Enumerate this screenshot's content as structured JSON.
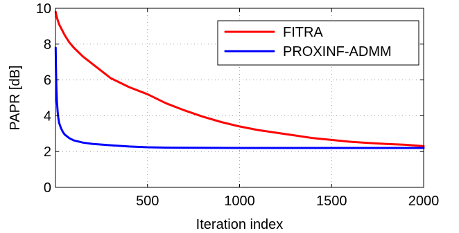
{
  "chart_data": {
    "type": "line",
    "title": "",
    "xlabel": "Iteration index",
    "ylabel": "PAPR [dB]",
    "xlim": [
      0,
      2000
    ],
    "ylim": [
      0,
      10
    ],
    "x_ticks": [
      500,
      1000,
      1500,
      2000
    ],
    "y_ticks": [
      0,
      2,
      4,
      6,
      8,
      10
    ],
    "grid": true,
    "legend_position": "top-right",
    "series": [
      {
        "name": "FITRA",
        "color": "#ff0000",
        "x": [
          1,
          5,
          10,
          20,
          30,
          50,
          75,
          100,
          150,
          200,
          250,
          300,
          400,
          500,
          600,
          700,
          800,
          900,
          1000,
          1100,
          1200,
          1300,
          1400,
          1500,
          1600,
          1700,
          1800,
          1900,
          2000
        ],
        "y": [
          9.8,
          9.6,
          9.4,
          9.1,
          8.9,
          8.5,
          8.1,
          7.8,
          7.3,
          6.9,
          6.5,
          6.1,
          5.6,
          5.2,
          4.7,
          4.3,
          3.95,
          3.65,
          3.4,
          3.2,
          3.05,
          2.9,
          2.75,
          2.65,
          2.55,
          2.48,
          2.42,
          2.38,
          2.3
        ]
      },
      {
        "name": "PROXINF-ADMM",
        "color": "#0000ff",
        "x": [
          1,
          3,
          5,
          8,
          12,
          16,
          20,
          30,
          40,
          50,
          75,
          100,
          150,
          200,
          300,
          400,
          500,
          600,
          800,
          1000,
          1200,
          1500,
          2000
        ],
        "y": [
          7.8,
          6.5,
          5.6,
          4.8,
          4.2,
          3.85,
          3.6,
          3.3,
          3.1,
          2.95,
          2.75,
          2.62,
          2.5,
          2.43,
          2.35,
          2.28,
          2.24,
          2.22,
          2.21,
          2.2,
          2.2,
          2.2,
          2.2
        ]
      }
    ]
  }
}
